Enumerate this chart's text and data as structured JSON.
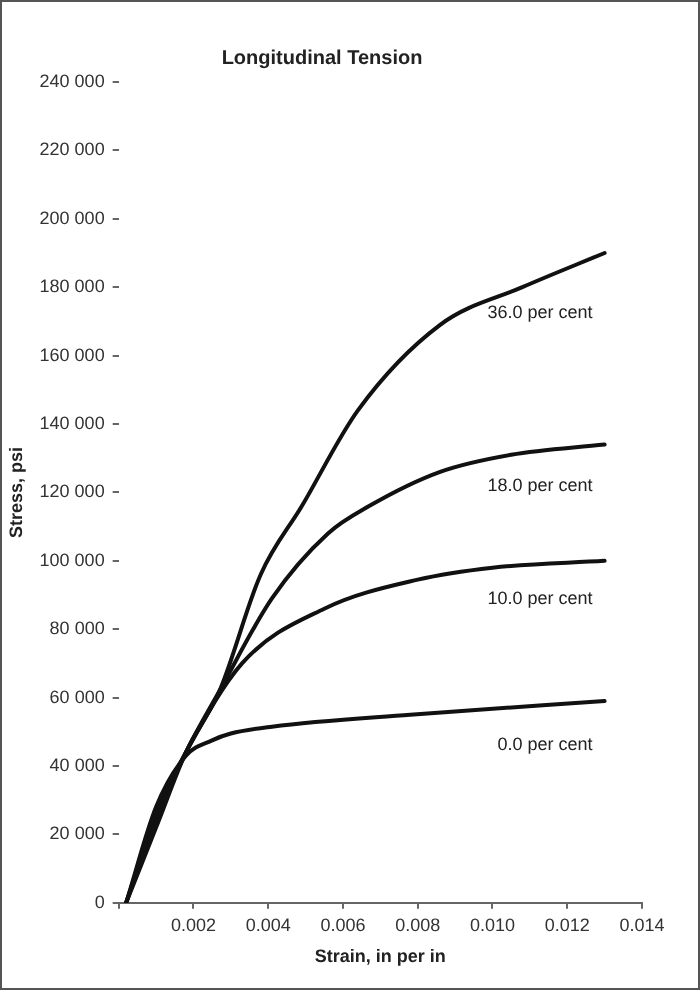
{
  "chart_data": {
    "type": "line",
    "title": "Longitudinal Tension",
    "xlabel": "Strain, in per in",
    "ylabel": "Stress, psi",
    "xlim": [
      0,
      0.014
    ],
    "ylim": [
      0,
      240000
    ],
    "xticks": [
      {
        "value": 0,
        "label": null
      },
      0.002,
      0.004,
      0.006,
      0.008,
      {
        "value": 0.01,
        "label": "0.010"
      },
      0.012,
      0.014
    ],
    "yticks": [
      0,
      {
        "value": 20000,
        "label": "20 000"
      },
      {
        "value": 40000,
        "label": "40 000"
      },
      {
        "value": 60000,
        "label": "60 000"
      },
      {
        "value": 80000,
        "label": "80 000"
      },
      {
        "value": 100000,
        "label": "100 000"
      },
      {
        "value": 120000,
        "label": "120 000"
      },
      {
        "value": 140000,
        "label": "140 000"
      },
      {
        "value": 160000,
        "label": "160 000"
      },
      {
        "value": 180000,
        "label": "180 000"
      },
      {
        "value": 200000,
        "label": "200 000"
      },
      {
        "value": 220000,
        "label": "220 000"
      },
      {
        "value": 240000,
        "label": "240 000"
      }
    ],
    "grid": false,
    "legend": false,
    "marker": "none",
    "line_style": "solid",
    "series": [
      {
        "name": "36.0 per cent",
        "color": "#111111",
        "x": [
          0.0002,
          0.001,
          0.0018,
          0.0027,
          0.0038,
          0.0049,
          0.0064,
          0.0086,
          0.0108,
          0.013
        ],
        "values": [
          0,
          22000,
          44000,
          62000,
          96000,
          116000,
          144000,
          169000,
          180000,
          190000
        ]
      },
      {
        "name": "18.0 per cent",
        "color": "#111111",
        "x": [
          0.0002,
          0.001,
          0.0018,
          0.0027,
          0.0041,
          0.0056,
          0.0067,
          0.0086,
          0.0105,
          0.013
        ],
        "values": [
          0,
          24000,
          44000,
          62000,
          89000,
          108000,
          116000,
          126000,
          131000,
          134000
        ]
      },
      {
        "name": "10.0 per cent",
        "color": "#111111",
        "x": [
          0.0002,
          0.001,
          0.0018,
          0.0033,
          0.0055,
          0.008,
          0.01,
          0.013
        ],
        "values": [
          0,
          26000,
          44000,
          70000,
          86000,
          94500,
          98000,
          100000
        ]
      },
      {
        "name": "0.0 per cent",
        "color": "#111111",
        "x": [
          0.0002,
          0.001,
          0.0018,
          0.0025,
          0.003,
          0.0041,
          0.0078,
          0.013
        ],
        "values": [
          0,
          28000,
          43000,
          47500,
          49500,
          51500,
          55000,
          59000
        ]
      }
    ]
  }
}
